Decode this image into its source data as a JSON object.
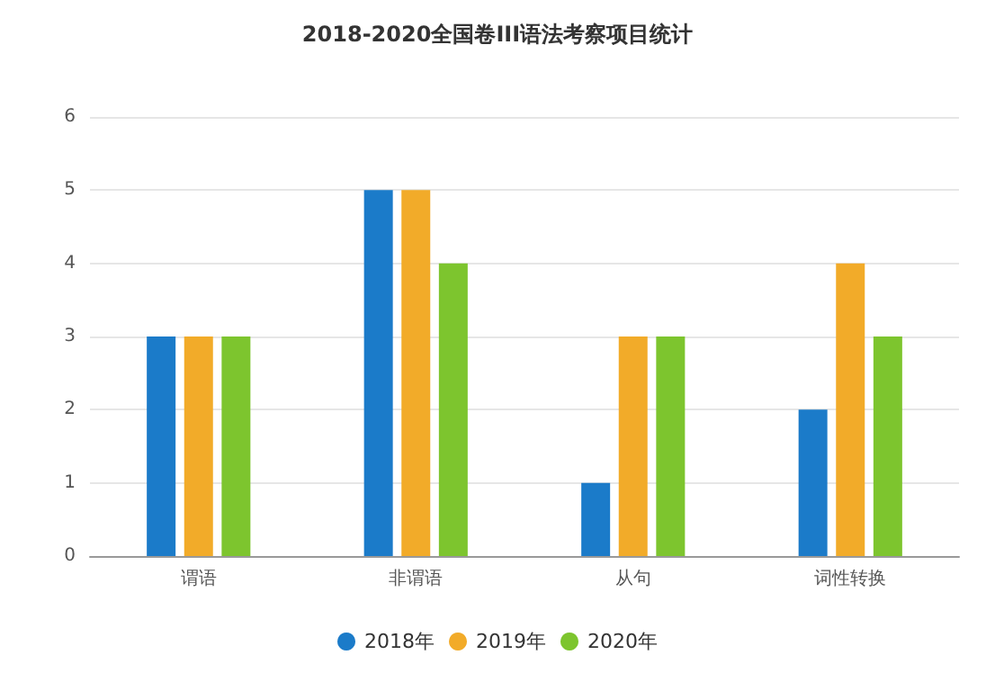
{
  "chart_data": {
    "type": "bar",
    "title": "2018-2020全国卷III语法考察项目统计",
    "categories": [
      "谓语",
      "非谓语",
      "从句",
      "词性转换"
    ],
    "series": [
      {
        "name": "2018年",
        "color": "#1b7bc9",
        "values": [
          3,
          5,
          1,
          2
        ]
      },
      {
        "name": "2019年",
        "color": "#f2ab29",
        "values": [
          3,
          5,
          3,
          4
        ]
      },
      {
        "name": "2020年",
        "color": "#7dc52e",
        "values": [
          3,
          4,
          3,
          3
        ]
      }
    ],
    "ylim": [
      0,
      6
    ],
    "yticks": [
      0,
      1,
      2,
      3,
      4,
      5,
      6
    ],
    "grid": "y",
    "legend": "bottom",
    "marker": "circle"
  }
}
